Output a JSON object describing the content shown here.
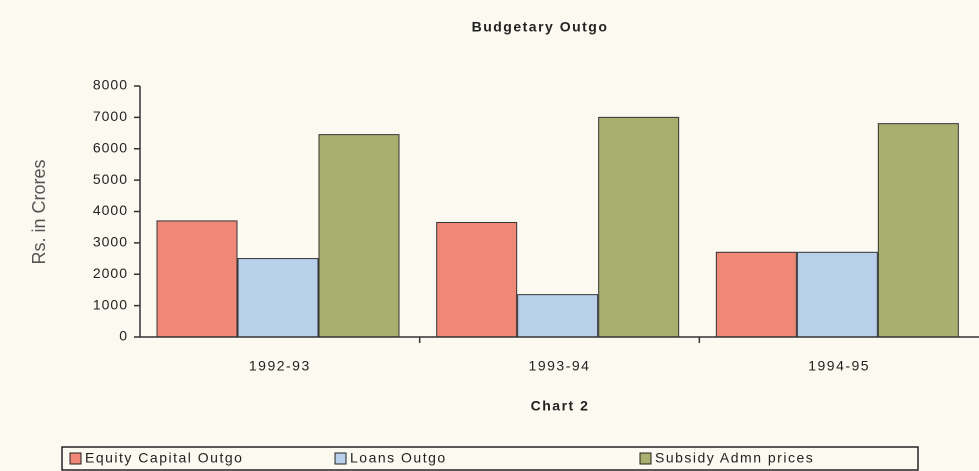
{
  "chart_data": {
    "type": "bar",
    "title": "Budgetary Outgo",
    "y_label": "Rs. in Crores",
    "x_label": "Chart 2",
    "categories": [
      "1992-93",
      "1993-94",
      "1994-95"
    ],
    "series": [
      {
        "name": "Equity Capital Outgo",
        "color": "#f08878",
        "values": [
          3700,
          3650,
          2700
        ]
      },
      {
        "name": "Loans Outgo",
        "color": "#b8d0ea",
        "values": [
          2500,
          1350,
          2700
        ]
      },
      {
        "name": "Subsidy Admn prices",
        "color": "#a8b070",
        "values": [
          6450,
          7000,
          6800
        ]
      }
    ],
    "ylim": [
      0,
      8000
    ],
    "yticks": [
      0,
      1000,
      2000,
      3000,
      4000,
      5000,
      6000,
      7000,
      8000
    ],
    "grid": false
  }
}
